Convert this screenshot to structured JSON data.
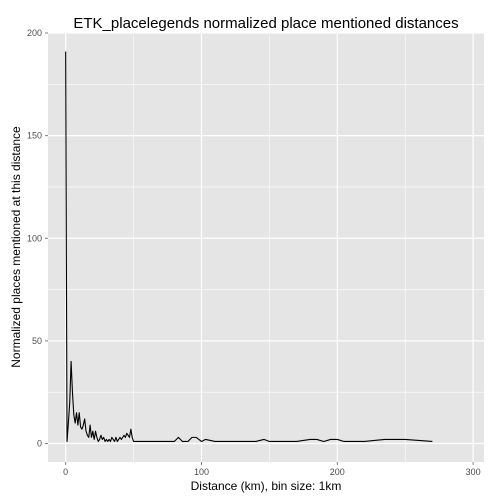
{
  "chart_data": {
    "type": "line",
    "title": "ETK_placelegends normalized place mentioned distances",
    "xlabel": "Distance (km), bin size: 1km",
    "ylabel": "Normalized places mentioned at this distance",
    "xlim": [
      -13,
      308
    ],
    "ylim": [
      -9,
      200
    ],
    "x_ticks": [
      0,
      100,
      200,
      300
    ],
    "y_ticks": [
      0,
      50,
      100,
      150,
      200
    ],
    "grid": true,
    "panel_background": "#e5e5e5",
    "grid_color": "#ffffff",
    "line_color": "#000000",
    "series": [
      {
        "x": [
          0,
          1,
          2,
          3,
          4,
          5,
          6,
          7,
          8,
          9,
          10,
          11,
          12,
          13,
          14,
          15,
          16,
          17,
          18,
          19,
          20,
          21,
          22,
          23,
          24,
          25,
          26,
          27,
          28,
          29,
          30,
          31,
          32,
          33,
          34,
          35,
          36,
          37,
          38,
          39,
          40,
          41,
          42,
          43,
          44,
          45,
          46,
          47,
          48,
          49,
          50,
          51,
          52,
          53,
          54,
          55,
          56,
          57,
          58,
          59,
          60,
          62,
          65,
          70,
          75,
          80,
          83,
          86,
          90,
          93,
          96,
          100,
          103,
          110,
          120,
          130,
          140,
          146,
          150,
          155,
          160,
          170,
          180,
          185,
          190,
          195,
          200,
          205,
          210,
          220,
          235,
          250,
          270
        ],
        "y": [
          191,
          1,
          10,
          20,
          40,
          25,
          14,
          10,
          15,
          9,
          15,
          8,
          7,
          9,
          12,
          6,
          4,
          3,
          9,
          3,
          6,
          2,
          6,
          3,
          1,
          2,
          4,
          2,
          3,
          1,
          2,
          1,
          2,
          1,
          3,
          2,
          1,
          3,
          1,
          2,
          3,
          2,
          3,
          4,
          3,
          5,
          4,
          3,
          7,
          3,
          1,
          1,
          1,
          1,
          1,
          1,
          1,
          1,
          1,
          1,
          1,
          1,
          1,
          1,
          1,
          1,
          3,
          1,
          1,
          3,
          3,
          1,
          2,
          1,
          1,
          1,
          1,
          2,
          1,
          1,
          1,
          1,
          2,
          2,
          1,
          2,
          2,
          1,
          1,
          1,
          2,
          2,
          1
        ]
      }
    ]
  }
}
